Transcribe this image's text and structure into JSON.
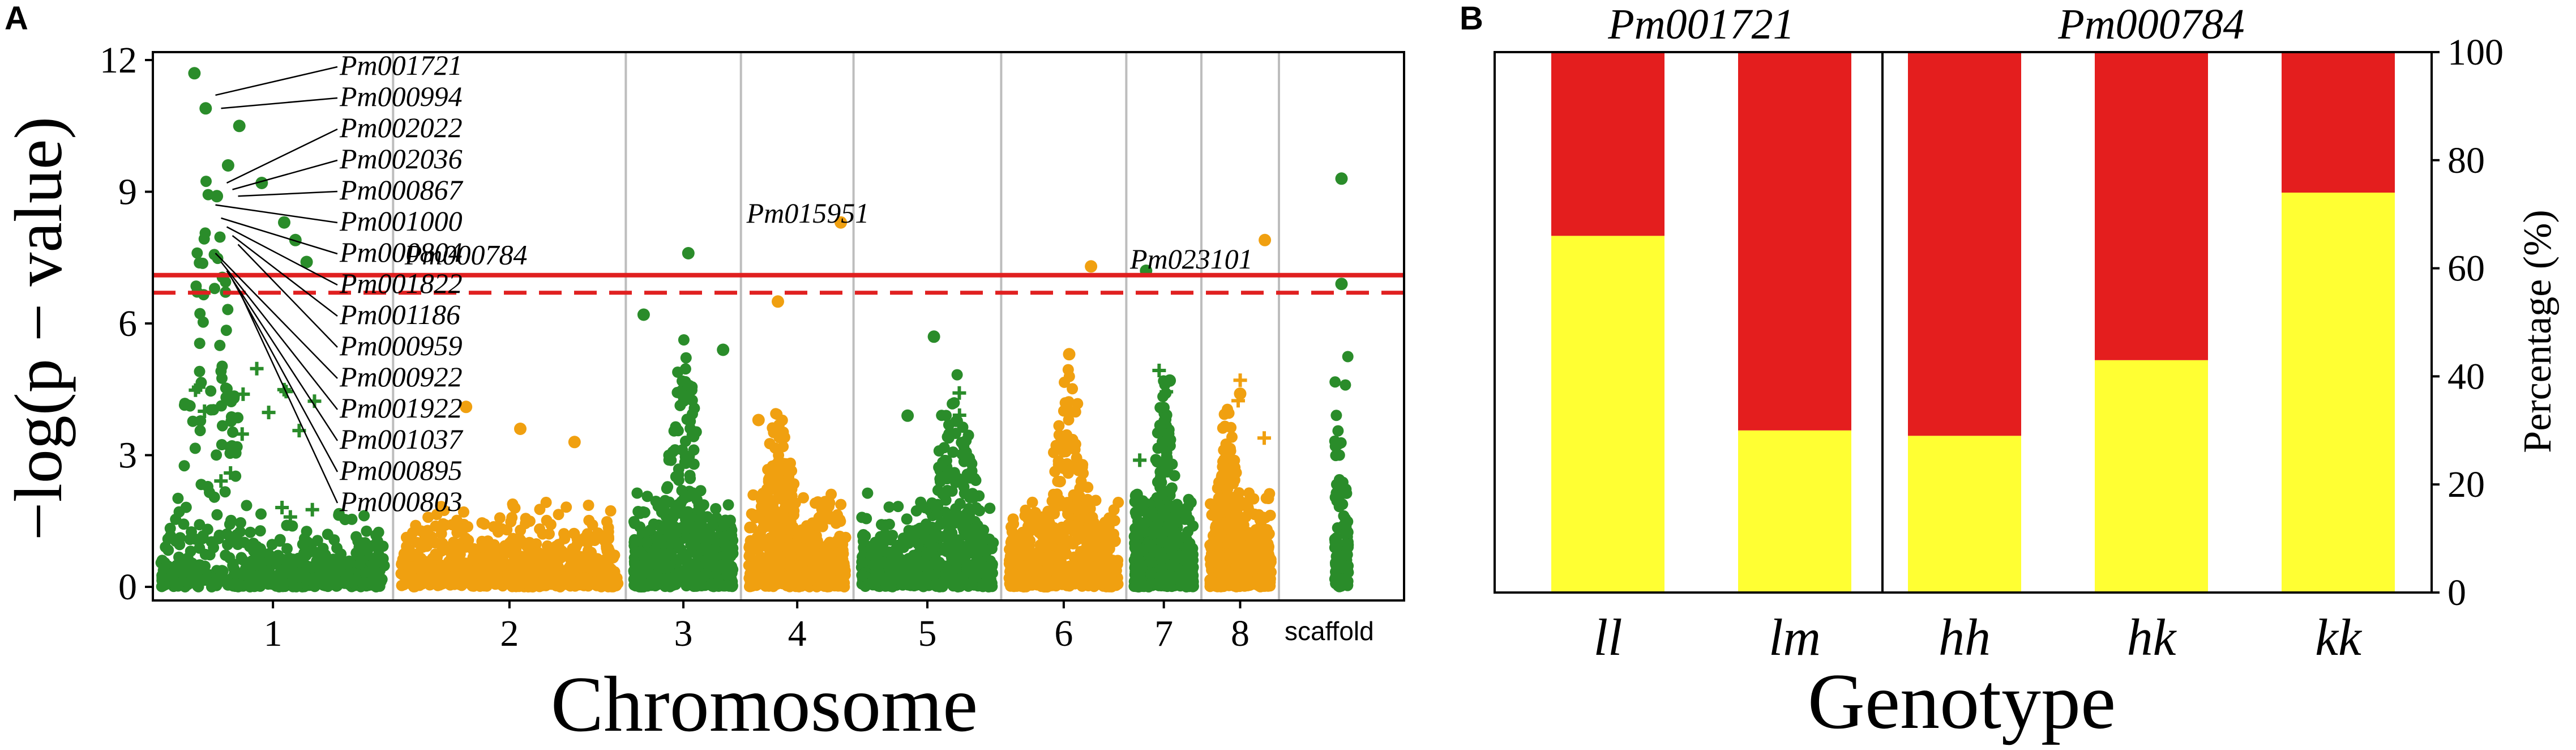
{
  "panel_a": {
    "letter": "A",
    "colors": {
      "green": "#2a8c2a",
      "orange": "#f0a010",
      "threshold": "#e02020"
    },
    "chart_data": {
      "type": "scatter",
      "title": "",
      "xlabel": "Chromosome",
      "ylabel": "−log(p − value)",
      "ylim": [
        0,
        12
      ],
      "yticks": [
        "0",
        "3",
        "6",
        "9",
        "12"
      ],
      "groups": [
        {
          "label": "1",
          "color": "green",
          "bg_mean": 0.8,
          "bg_max": 2.5,
          "peak_center": 0.22,
          "peak_height": 9.5,
          "extras": [
            [
              0.15,
              11.7
            ],
            [
              0.2,
              10.9
            ],
            [
              0.35,
              10.5
            ],
            [
              0.3,
              9.6
            ],
            [
              0.45,
              9.2
            ],
            [
              0.25,
              8.9
            ],
            [
              0.55,
              8.3
            ],
            [
              0.6,
              7.9
            ],
            [
              0.65,
              7.4
            ]
          ]
        },
        {
          "label": "2",
          "color": "orange",
          "bg_mean": 0.9,
          "bg_max": 2.8,
          "peak_center": null,
          "peak_height": 0,
          "extras": [
            [
              0.3,
              4.1
            ],
            [
              0.55,
              3.6
            ],
            [
              0.8,
              3.3
            ]
          ]
        },
        {
          "label": "3",
          "color": "green",
          "bg_mean": 1.0,
          "bg_max": 3.3,
          "peak_center": 0.5,
          "peak_height": 5.0,
          "extras": [
            [
              0.1,
              6.2
            ],
            [
              0.55,
              7.6
            ],
            [
              0.9,
              5.4
            ]
          ]
        },
        {
          "label": "4",
          "color": "orange",
          "bg_mean": 1.0,
          "bg_max": 3.0,
          "peak_center": 0.3,
          "peak_height": 3.5,
          "extras": [
            [
              0.95,
              8.3
            ],
            [
              0.3,
              6.5
            ],
            [
              0.1,
              3.8
            ]
          ]
        },
        {
          "label": "5",
          "color": "green",
          "bg_mean": 1.0,
          "bg_max": 3.0,
          "peak_center": 0.7,
          "peak_height": 4.0,
          "extras": [
            [
              0.35,
              3.9
            ],
            [
              0.55,
              5.7
            ]
          ]
        },
        {
          "label": "6",
          "color": "orange",
          "bg_mean": 1.0,
          "bg_max": 3.0,
          "peak_center": 0.55,
          "peak_height": 4.3,
          "extras": [
            [
              0.55,
              5.3
            ],
            [
              0.75,
              7.3
            ]
          ]
        },
        {
          "label": "7",
          "color": "green",
          "bg_mean": 1.0,
          "bg_max": 3.0,
          "peak_center": 0.5,
          "peak_height": 4.4,
          "extras": [
            [
              0.2,
              7.2
            ],
            [
              0.6,
              4.7
            ]
          ]
        },
        {
          "label": "8",
          "color": "orange",
          "bg_mean": 1.0,
          "bg_max": 3.0,
          "peak_center": 0.3,
          "peak_height": 3.8,
          "extras": [
            [
              0.9,
              7.9
            ],
            [
              0.5,
              4.4
            ]
          ]
        },
        {
          "label": "scaffold",
          "color": "green",
          "bg_mean": 1.2,
          "bg_max": 4.5,
          "peak_center": 0.5,
          "peak_height": 5.0,
          "extras": [
            [
              0.5,
              9.3
            ],
            [
              0.5,
              6.9
            ]
          ]
        }
      ],
      "thresholds": [
        {
          "value": 7.1,
          "style": "solid"
        },
        {
          "value": 6.7,
          "style": "dashed"
        }
      ],
      "annotations_left": [
        "Pm001721",
        "Pm000994",
        "Pm002022",
        "Pm002036",
        "Pm000867",
        "Pm001000",
        "Pm000804",
        "Pm001822",
        "Pm001186",
        "Pm000959",
        "Pm000922",
        "Pm001922",
        "Pm001037",
        "Pm000895",
        "Pm000803"
      ],
      "annotations_inline": [
        {
          "label": "Pm000784",
          "x_group": 1,
          "y": 7.35
        },
        {
          "label": "Pm015951",
          "x_group": 3,
          "y": 8.3
        },
        {
          "label": "Pm023101",
          "x_group": 6,
          "y": 7.25
        }
      ]
    }
  },
  "panel_b": {
    "letter": "B",
    "colors": {
      "yellow": "#ffff33",
      "red": "#e41e1e"
    },
    "chart_data": {
      "type": "bar",
      "stacked": true,
      "xlabel": "Genotype",
      "ylabel": "Percentage (%)",
      "ylim": [
        0,
        100
      ],
      "yticks": [
        "0",
        "20",
        "40",
        "60",
        "80",
        "100"
      ],
      "groups": [
        {
          "title": "Pm001721",
          "categories": [
            "ll",
            "lm"
          ],
          "yellow": [
            66,
            30
          ],
          "red": [
            34,
            70
          ]
        },
        {
          "title": "Pm000784",
          "categories": [
            "hh",
            "hk",
            "kk"
          ],
          "yellow": [
            29,
            43,
            74
          ],
          "red": [
            71,
            57,
            26
          ]
        }
      ]
    }
  }
}
